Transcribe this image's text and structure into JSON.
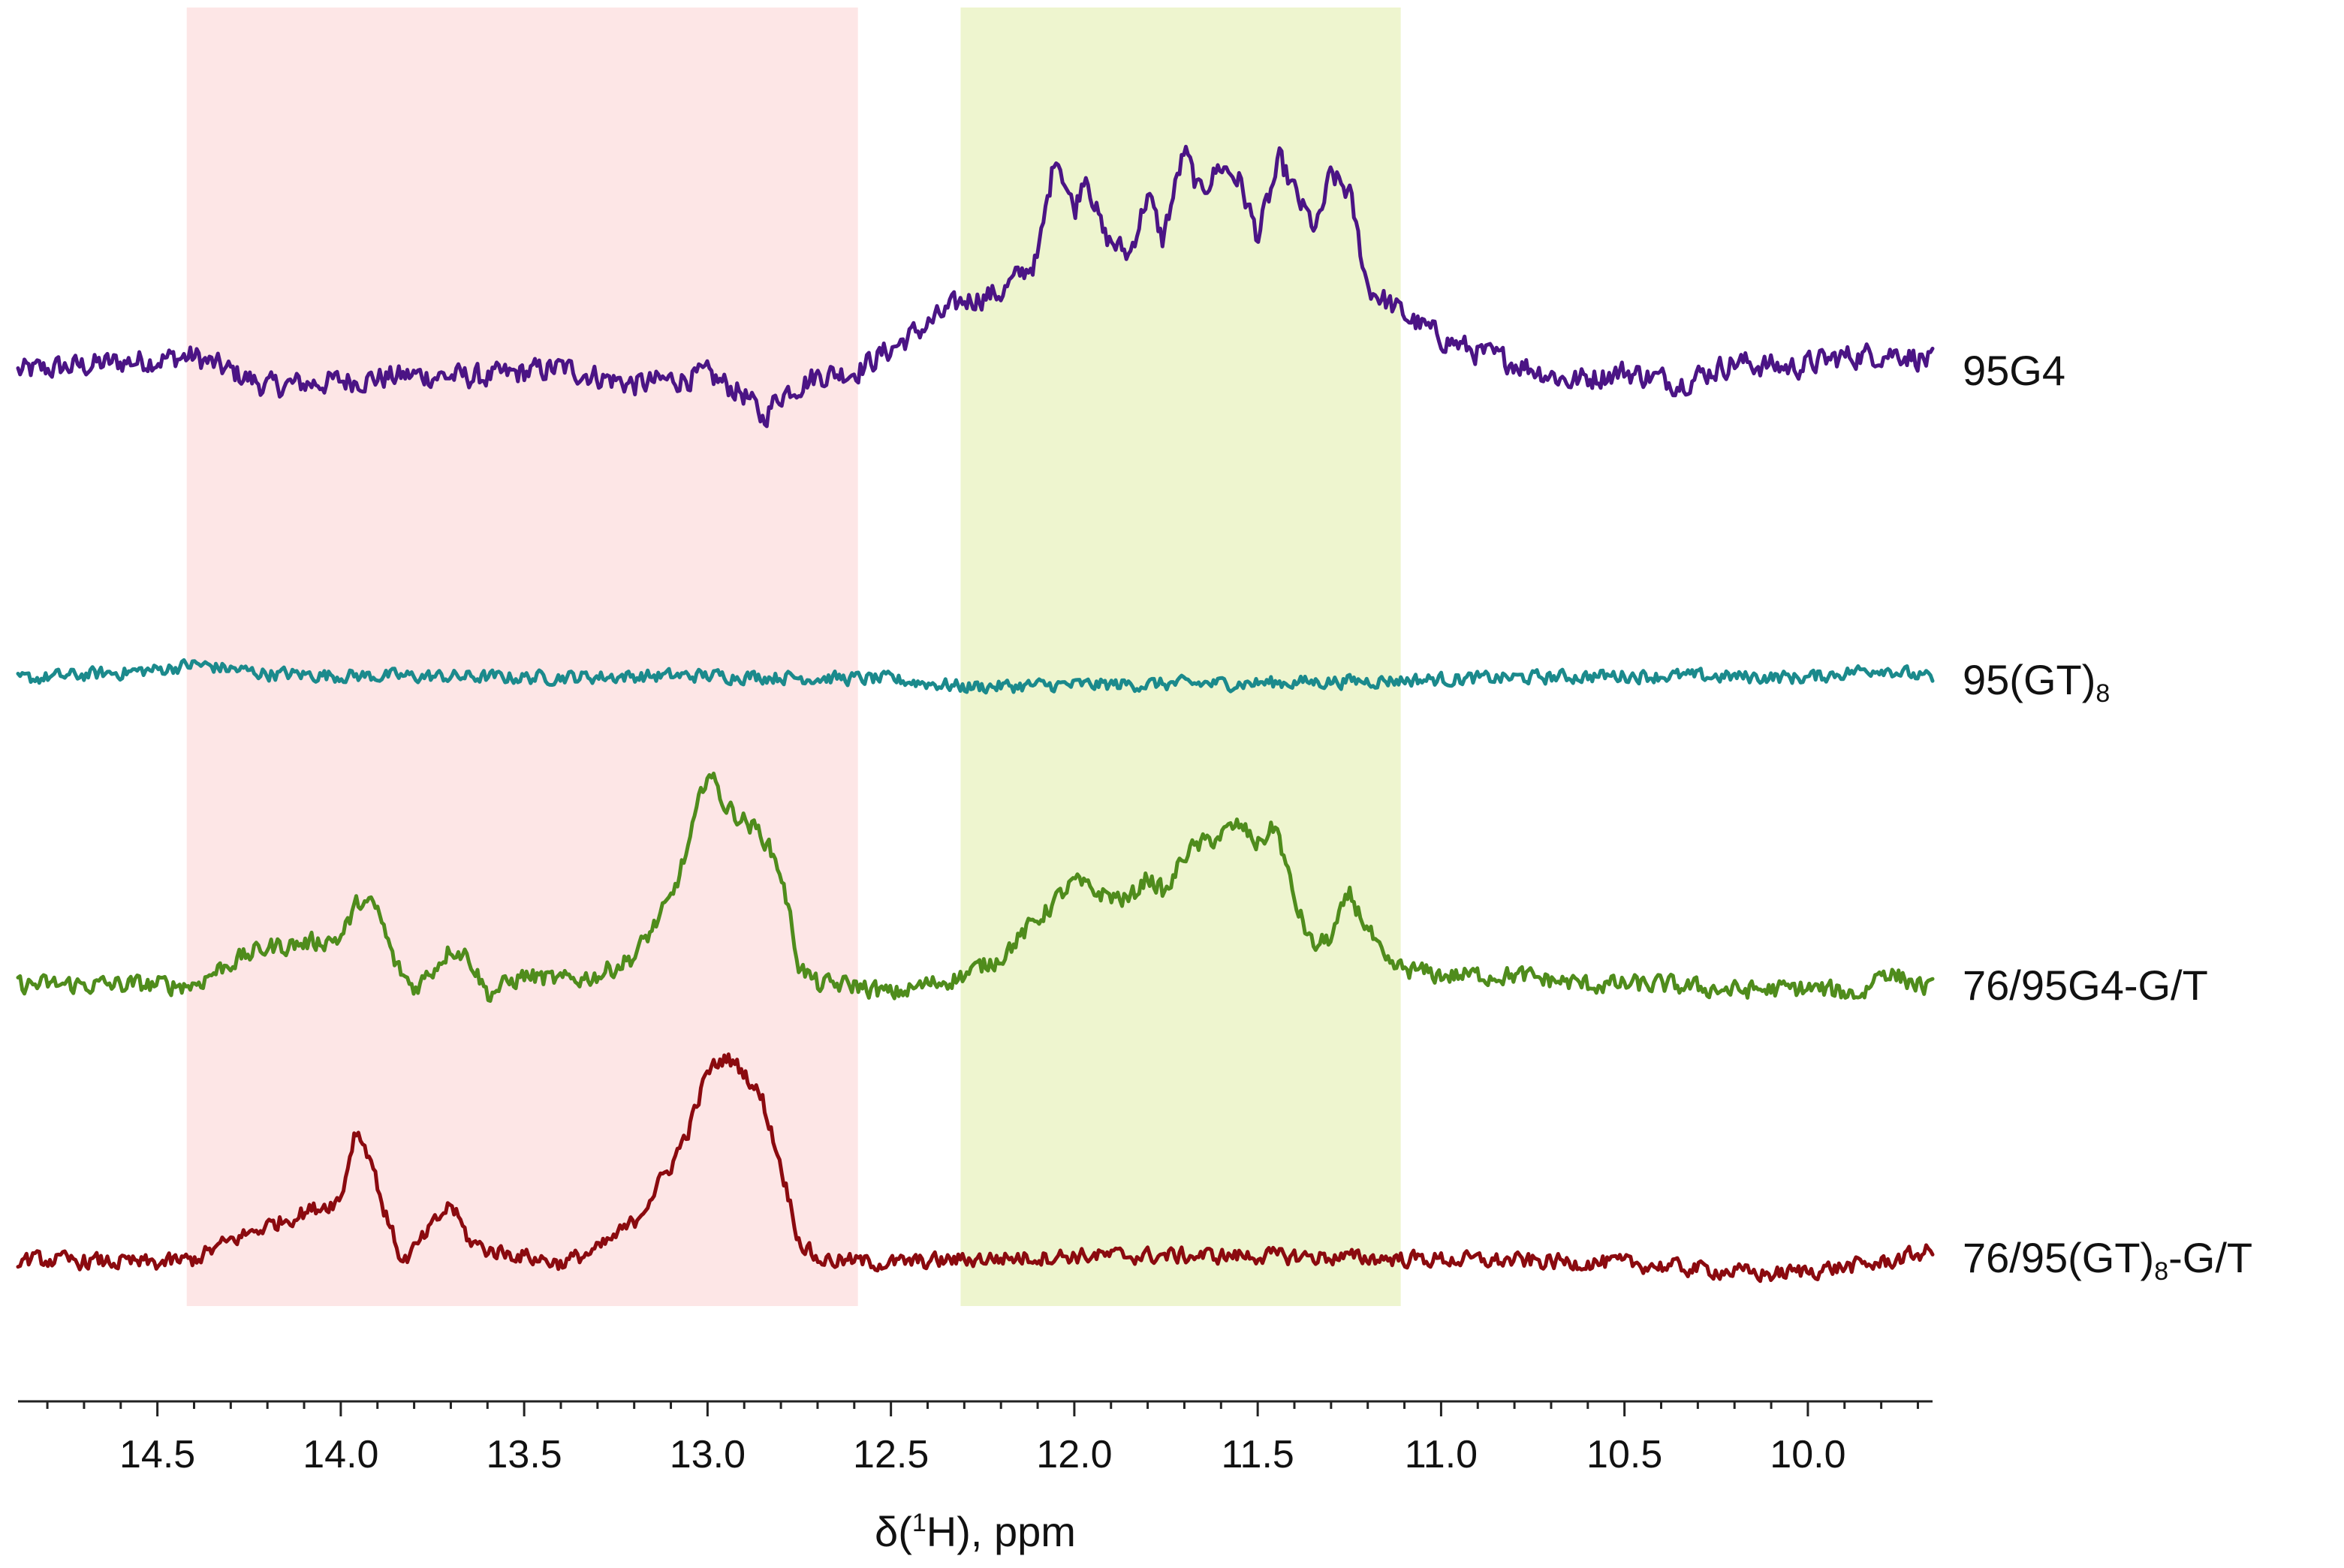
{
  "chart_data": {
    "type": "line",
    "title": "",
    "xlabel_prefix": "δ(",
    "xlabel_sup": "1",
    "xlabel_suffix": "H), ppm",
    "x_reversed": true,
    "xlim": [
      14.88,
      9.66
    ],
    "ticks": [
      {
        "value": 14.5,
        "label": "14.5"
      },
      {
        "value": 14.0,
        "label": "14.0"
      },
      {
        "value": 13.5,
        "label": "13.5"
      },
      {
        "value": 13.0,
        "label": "13.0"
      },
      {
        "value": 12.5,
        "label": "12.5"
      },
      {
        "value": 12.0,
        "label": "12.0"
      },
      {
        "value": 11.5,
        "label": "11.5"
      },
      {
        "value": 11.0,
        "label": "11.0"
      },
      {
        "value": 10.5,
        "label": "10.5"
      },
      {
        "value": 10.0,
        "label": "10.0"
      }
    ],
    "regions": [
      {
        "x_from": 14.42,
        "x_to": 12.59,
        "color": "#fde6e6"
      },
      {
        "x_from": 12.31,
        "x_to": 11.11,
        "color": "#eef5cf"
      }
    ],
    "grid": false,
    "legend": "none",
    "series": [
      {
        "name": "95G4",
        "label_main": "95G4",
        "label_sub": "",
        "label_tail": "",
        "color": "#4b1485",
        "noise": 0.09,
        "points": [
          [
            14.88,
            0.0
          ],
          [
            14.6,
            0.05
          ],
          [
            14.4,
            0.08
          ],
          [
            14.2,
            -0.08
          ],
          [
            14.0,
            -0.05
          ],
          [
            13.8,
            -0.02
          ],
          [
            13.6,
            -0.03
          ],
          [
            13.4,
            0.02
          ],
          [
            13.2,
            -0.07
          ],
          [
            13.0,
            -0.02
          ],
          [
            12.9,
            -0.12
          ],
          [
            12.85,
            -0.25
          ],
          [
            12.8,
            -0.12
          ],
          [
            12.7,
            -0.02
          ],
          [
            12.6,
            0.0
          ],
          [
            12.5,
            0.12
          ],
          [
            12.4,
            0.25
          ],
          [
            12.3,
            0.38
          ],
          [
            12.2,
            0.42
          ],
          [
            12.1,
            0.6
          ],
          [
            12.05,
            1.18
          ],
          [
            12.0,
            0.85
          ],
          [
            11.97,
            1.08
          ],
          [
            11.92,
            0.72
          ],
          [
            11.85,
            0.62
          ],
          [
            11.8,
            0.95
          ],
          [
            11.76,
            0.7
          ],
          [
            11.7,
            1.18
          ],
          [
            11.66,
            0.95
          ],
          [
            11.6,
            1.1
          ],
          [
            11.55,
            1.02
          ],
          [
            11.5,
            0.72
          ],
          [
            11.44,
            1.12
          ],
          [
            11.38,
            0.88
          ],
          [
            11.34,
            0.75
          ],
          [
            11.3,
            1.05
          ],
          [
            11.25,
            0.95
          ],
          [
            11.2,
            0.45
          ],
          [
            11.1,
            0.3
          ],
          [
            11.0,
            0.18
          ],
          [
            10.9,
            0.1
          ],
          [
            10.8,
            0.05
          ],
          [
            10.65,
            -0.05
          ],
          [
            10.5,
            0.0
          ],
          [
            10.35,
            -0.06
          ],
          [
            10.2,
            0.05
          ],
          [
            10.05,
            0.02
          ],
          [
            9.9,
            0.08
          ],
          [
            9.75,
            0.1
          ],
          [
            9.66,
            0.05
          ]
        ]
      },
      {
        "name": "95(GT)8",
        "label_main": "95(GT)",
        "label_sub": "8",
        "label_tail": "",
        "color": "#1b8a8c",
        "noise": 0.05,
        "points": [
          [
            14.88,
            0.0
          ],
          [
            14.5,
            0.05
          ],
          [
            14.4,
            0.08
          ],
          [
            14.2,
            0.03
          ],
          [
            14.0,
            0.02
          ],
          [
            13.5,
            0.01
          ],
          [
            13.0,
            0.02
          ],
          [
            12.5,
            0.0
          ],
          [
            12.3,
            -0.04
          ],
          [
            12.0,
            -0.03
          ],
          [
            11.5,
            -0.02
          ],
          [
            11.0,
            0.0
          ],
          [
            10.5,
            0.02
          ],
          [
            10.0,
            0.01
          ],
          [
            9.8,
            0.06
          ],
          [
            9.66,
            0.0
          ]
        ]
      },
      {
        "name": "76/95G4-G/T",
        "label_main": "76/95G4-G/T",
        "label_sub": "",
        "label_tail": "",
        "color": "#4f8c1c",
        "noise": 0.07,
        "points": [
          [
            14.88,
            0.0
          ],
          [
            14.5,
            0.0
          ],
          [
            14.4,
            0.0
          ],
          [
            14.3,
            0.12
          ],
          [
            14.2,
            0.2
          ],
          [
            14.1,
            0.22
          ],
          [
            14.0,
            0.25
          ],
          [
            13.95,
            0.45
          ],
          [
            13.9,
            0.4
          ],
          [
            13.85,
            0.1
          ],
          [
            13.8,
            -0.02
          ],
          [
            13.75,
            0.08
          ],
          [
            13.7,
            0.2
          ],
          [
            13.65,
            0.15
          ],
          [
            13.6,
            -0.05
          ],
          [
            13.5,
            0.05
          ],
          [
            13.4,
            0.02
          ],
          [
            13.3,
            0.05
          ],
          [
            13.2,
            0.15
          ],
          [
            13.1,
            0.45
          ],
          [
            13.05,
            0.75
          ],
          [
            13.0,
            1.15
          ],
          [
            12.95,
            0.95
          ],
          [
            12.85,
            0.8
          ],
          [
            12.8,
            0.6
          ],
          [
            12.75,
            0.1
          ],
          [
            12.7,
            0.0
          ],
          [
            12.6,
            0.0
          ],
          [
            12.5,
            -0.05
          ],
          [
            12.4,
            0.0
          ],
          [
            12.3,
            0.05
          ],
          [
            12.2,
            0.15
          ],
          [
            12.1,
            0.35
          ],
          [
            12.0,
            0.55
          ],
          [
            11.95,
            0.5
          ],
          [
            11.85,
            0.45
          ],
          [
            11.8,
            0.58
          ],
          [
            11.75,
            0.48
          ],
          [
            11.7,
            0.7
          ],
          [
            11.6,
            0.8
          ],
          [
            11.55,
            0.85
          ],
          [
            11.5,
            0.75
          ],
          [
            11.45,
            0.85
          ],
          [
            11.4,
            0.45
          ],
          [
            11.35,
            0.2
          ],
          [
            11.3,
            0.25
          ],
          [
            11.25,
            0.48
          ],
          [
            11.2,
            0.3
          ],
          [
            11.15,
            0.1
          ],
          [
            11.0,
            0.05
          ],
          [
            10.8,
            0.05
          ],
          [
            10.6,
            0.0
          ],
          [
            10.4,
            0.0
          ],
          [
            10.2,
            -0.03
          ],
          [
            10.0,
            -0.02
          ],
          [
            9.85,
            -0.05
          ],
          [
            9.8,
            0.08
          ],
          [
            9.66,
            -0.03
          ]
        ]
      },
      {
        "name": "76/95(GT)8-G/T",
        "label_main": "76/95(GT)",
        "label_sub": "8",
        "label_tail": "-G/T",
        "color": "#8b0a0f",
        "noise": 0.06,
        "points": [
          [
            14.88,
            0.0
          ],
          [
            14.5,
            -0.02
          ],
          [
            14.4,
            0.0
          ],
          [
            14.3,
            0.1
          ],
          [
            14.2,
            0.18
          ],
          [
            14.1,
            0.25
          ],
          [
            14.0,
            0.32
          ],
          [
            13.96,
            0.7
          ],
          [
            13.92,
            0.55
          ],
          [
            13.88,
            0.25
          ],
          [
            13.83,
            -0.02
          ],
          [
            13.78,
            0.1
          ],
          [
            13.7,
            0.3
          ],
          [
            13.65,
            0.1
          ],
          [
            13.6,
            0.05
          ],
          [
            13.5,
            0.02
          ],
          [
            13.4,
            -0.02
          ],
          [
            13.3,
            0.05
          ],
          [
            13.2,
            0.2
          ],
          [
            13.1,
            0.5
          ],
          [
            13.05,
            0.7
          ],
          [
            13.0,
            1.0
          ],
          [
            12.95,
            1.08
          ],
          [
            12.9,
            1.0
          ],
          [
            12.85,
            0.85
          ],
          [
            12.8,
            0.5
          ],
          [
            12.75,
            0.1
          ],
          [
            12.7,
            0.0
          ],
          [
            12.5,
            -0.02
          ],
          [
            12.3,
            0.0
          ],
          [
            12.0,
            0.02
          ],
          [
            11.5,
            0.02
          ],
          [
            11.0,
            0.0
          ],
          [
            10.5,
            -0.02
          ],
          [
            10.1,
            -0.08
          ],
          [
            9.8,
            -0.02
          ],
          [
            9.66,
            0.05
          ]
        ]
      }
    ]
  }
}
